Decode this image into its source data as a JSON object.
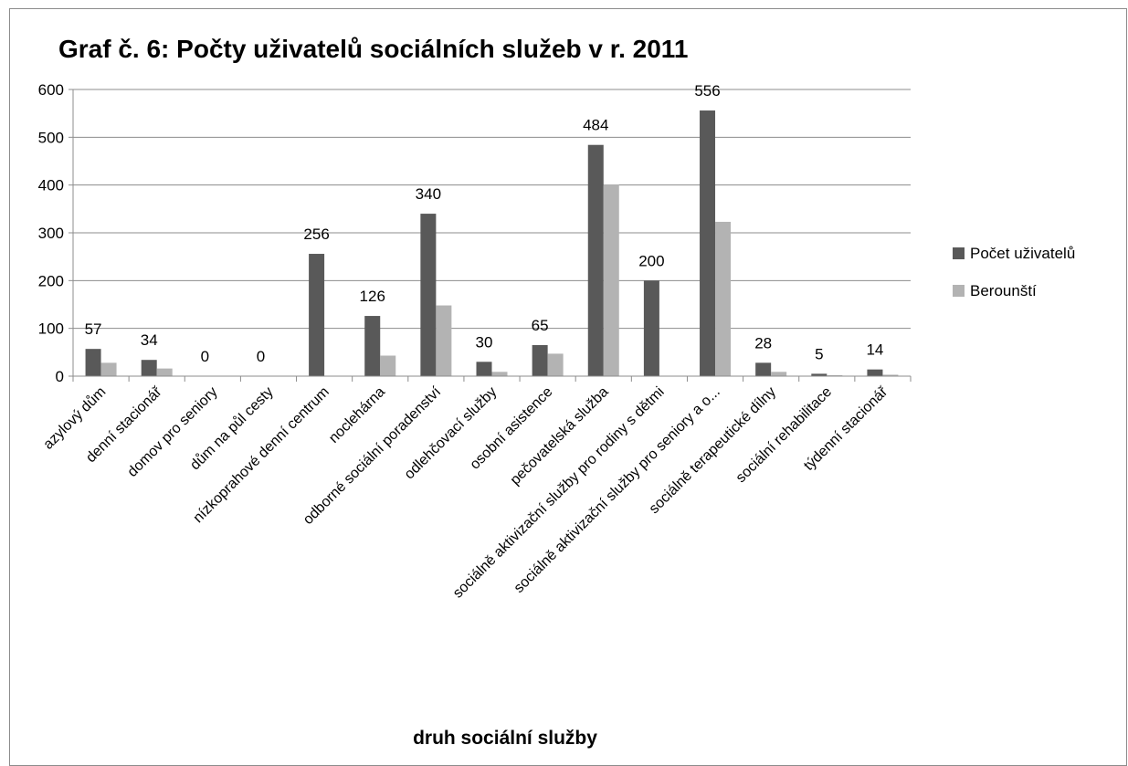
{
  "chart_data": {
    "type": "bar",
    "title": "Graf č. 6: Počty uživatelů sociálních služeb v r. 2011",
    "xlabel": "druh sociální služby",
    "ylabel": "",
    "ylim": [
      0,
      600
    ],
    "yticks": [
      "0",
      "100",
      "200",
      "300",
      "400",
      "500",
      "600"
    ],
    "grid": true,
    "legend_position": "right",
    "categories": [
      "azylový dům",
      "denní stacionář",
      "domov pro seniory",
      "dům na půl cesty",
      "nízkoprahové denní centrum",
      "noclehárna",
      "odborné sociální poradenství",
      "odlehčovací služby",
      "osobní asistence",
      "pečovatelská služba",
      "sociálně aktivizační služby pro rodiny s dětmi",
      "sociálně aktivizační služby pro seniory a o...",
      "sociálně terapeutické dílny",
      "sociální rehabilitace",
      "týdenní stacionář"
    ],
    "series": [
      {
        "name": "Počet uživatelů",
        "color": "#595959",
        "values": [
          57,
          34,
          0,
          0,
          256,
          126,
          340,
          30,
          65,
          484,
          200,
          556,
          28,
          5,
          14
        ],
        "data_labels": [
          "57",
          "34",
          "0",
          "0",
          "256",
          "126",
          "340",
          "30",
          "65",
          "484",
          "200",
          "556",
          "28",
          "5",
          "14"
        ],
        "label_shown": [
          true,
          true,
          true,
          true,
          true,
          true,
          true,
          true,
          true,
          true,
          true,
          true,
          true,
          true,
          true
        ]
      },
      {
        "name": "Berounští",
        "color": "#b3b3b3",
        "values": [
          28,
          16,
          0,
          0,
          0,
          43,
          148,
          9,
          47,
          401,
          0,
          323,
          9,
          2,
          3
        ]
      }
    ]
  }
}
